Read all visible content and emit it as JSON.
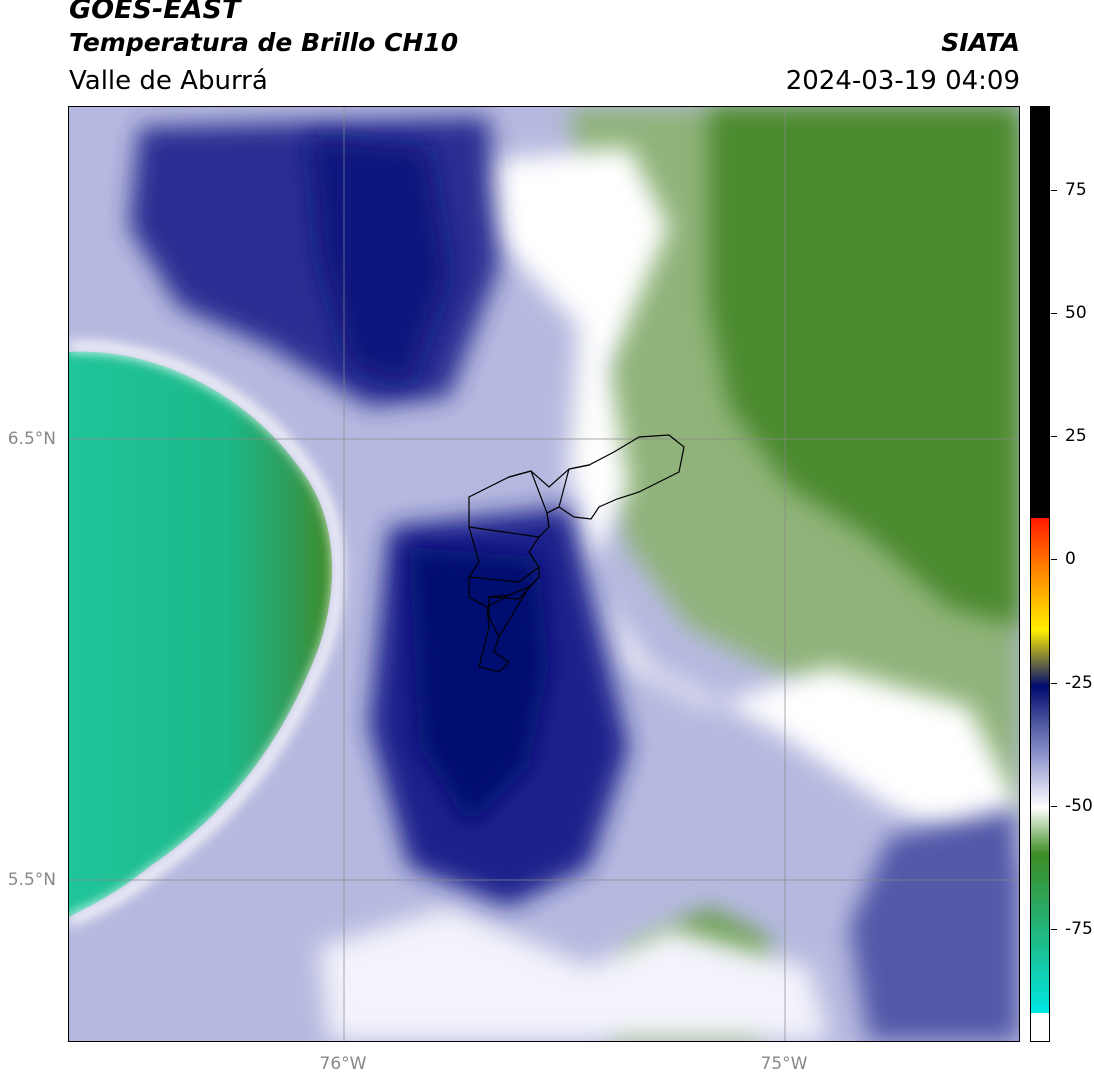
{
  "header": {
    "satellite": "GOES-EAST",
    "product": "Temperatura de Brillo CH10",
    "region": "Valle de Aburrá",
    "agency": "SIATA",
    "datetime": "2024-03-19 04:09"
  },
  "axes": {
    "lat_labels": [
      "6.5°N",
      "5.5°N"
    ],
    "lon_labels": [
      "76°W",
      "75°W"
    ]
  },
  "colorbar": {
    "ticks": [
      "75",
      "50",
      "25",
      "0",
      "-25",
      "-50",
      "-75"
    ],
    "colors": {
      "black": "#000000",
      "red": "#ff1a00",
      "orange": "#ff8c00",
      "yellow": "#ffee00",
      "navy": "#000c6e",
      "lavender": "#9a9fd2",
      "white": "#ffffff",
      "green": "#3c8c23",
      "teal": "#1cbf90",
      "cyan": "#00e6e6"
    }
  }
}
